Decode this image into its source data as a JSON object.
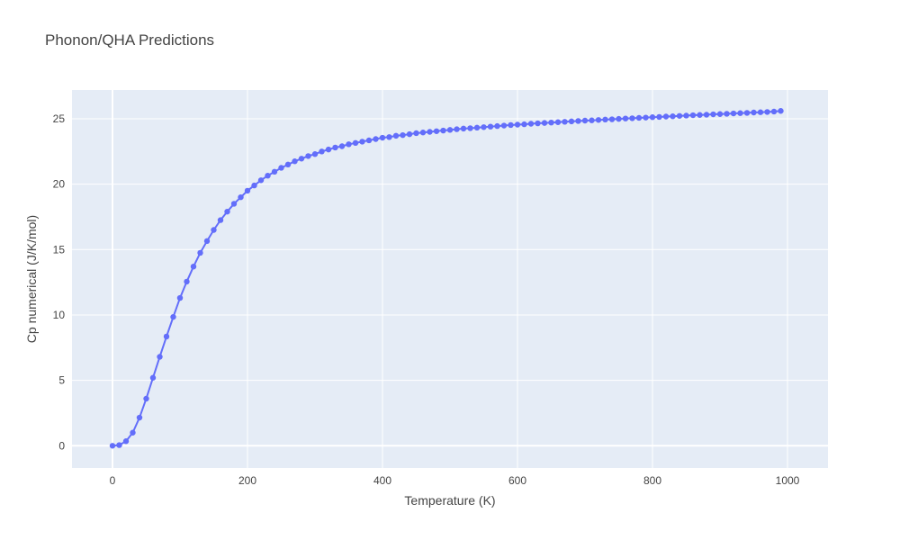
{
  "chart_data": {
    "type": "line",
    "mode": "lines+markers",
    "title": "Phonon/QHA Predictions",
    "xlabel": "Temperature (K)",
    "ylabel": "Cp numerical (J/K/mol)",
    "xlim": [
      -60,
      1060
    ],
    "ylim": [
      -1.7,
      27.2
    ],
    "xticks": [
      0,
      200,
      400,
      600,
      800,
      1000
    ],
    "yticks": [
      0,
      5,
      10,
      15,
      20,
      25
    ],
    "grid": true,
    "legend": "none",
    "colors": {
      "plot_bg": "#e5ecf6",
      "grid": "#ffffff",
      "series": "#636efa",
      "text": "#444444"
    },
    "series": [
      {
        "x": [
          0,
          10,
          20,
          30,
          40,
          50,
          60,
          70,
          80,
          90,
          100,
          110,
          120,
          130,
          140,
          150,
          160,
          170,
          180,
          190,
          200,
          210,
          220,
          230,
          240,
          250,
          260,
          270,
          280,
          290,
          300,
          310,
          320,
          330,
          340,
          350,
          360,
          370,
          380,
          390,
          400,
          410,
          420,
          430,
          440,
          450,
          460,
          470,
          480,
          490,
          500,
          510,
          520,
          530,
          540,
          550,
          560,
          570,
          580,
          590,
          600,
          610,
          620,
          630,
          640,
          650,
          660,
          670,
          680,
          690,
          700,
          710,
          720,
          730,
          740,
          750,
          760,
          770,
          780,
          790,
          800,
          810,
          820,
          830,
          840,
          850,
          860,
          870,
          880,
          890,
          900,
          910,
          920,
          930,
          940,
          950,
          960,
          970,
          980,
          990
        ],
        "y": [
          0,
          0.05,
          0.35,
          1.0,
          2.15,
          3.6,
          5.2,
          6.8,
          8.35,
          9.85,
          11.3,
          12.55,
          13.7,
          14.75,
          15.65,
          16.5,
          17.25,
          17.9,
          18.5,
          19.0,
          19.5,
          19.9,
          20.3,
          20.65,
          20.95,
          21.25,
          21.5,
          21.75,
          21.95,
          22.15,
          22.3,
          22.5,
          22.65,
          22.8,
          22.9,
          23.05,
          23.15,
          23.25,
          23.35,
          23.45,
          23.55,
          23.6,
          23.7,
          23.75,
          23.82,
          23.9,
          23.95,
          24.0,
          24.05,
          24.1,
          24.15,
          24.2,
          24.25,
          24.28,
          24.32,
          24.36,
          24.4,
          24.44,
          24.48,
          24.52,
          24.55,
          24.58,
          24.62,
          24.65,
          24.68,
          24.71,
          24.74,
          24.77,
          24.8,
          24.83,
          24.86,
          24.88,
          24.91,
          24.94,
          24.96,
          24.99,
          25.02,
          25.04,
          25.07,
          25.09,
          25.12,
          25.14,
          25.17,
          25.19,
          25.22,
          25.24,
          25.27,
          25.29,
          25.31,
          25.34,
          25.36,
          25.38,
          25.41,
          25.43,
          25.45,
          25.48,
          25.5,
          25.52,
          25.55,
          25.6
        ]
      }
    ]
  }
}
